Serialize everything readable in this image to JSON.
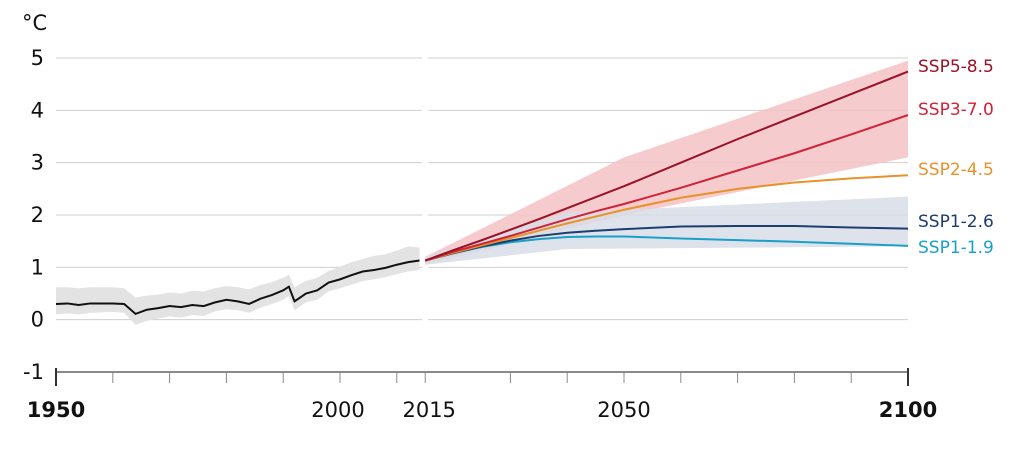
{
  "chart_data": {
    "type": "line",
    "title": "",
    "xlabel": "",
    "ylabel": "°C",
    "xlim": [
      1950,
      2100
    ],
    "ylim": [
      -1,
      5
    ],
    "grid": true,
    "legend": "right-end labels",
    "x_ticks": [
      {
        "value": 1950,
        "label": "1950",
        "bold": true
      },
      {
        "value": 2000,
        "label": "2000",
        "bold": false
      },
      {
        "value": 2015,
        "label": "2015",
        "bold": false
      },
      {
        "value": 2050,
        "label": "2050",
        "bold": false
      },
      {
        "value": 2100,
        "label": "2100",
        "bold": true
      }
    ],
    "y_ticks": [
      {
        "value": 5,
        "label": "5"
      },
      {
        "value": 4,
        "label": "4"
      },
      {
        "value": 3,
        "label": "3"
      },
      {
        "value": 2,
        "label": "2"
      },
      {
        "value": 1,
        "label": "1"
      },
      {
        "value": 0,
        "label": "0"
      },
      {
        "value": -1,
        "label": "-1"
      }
    ],
    "historical": {
      "color": "#111111",
      "band_color": "#e3e3e3",
      "x": [
        1950,
        1952,
        1954,
        1956,
        1958,
        1960,
        1962,
        1964,
        1966,
        1968,
        1970,
        1972,
        1974,
        1976,
        1978,
        1980,
        1982,
        1984,
        1986,
        1988,
        1990,
        1991,
        1992,
        1994,
        1996,
        1998,
        2000,
        2002,
        2004,
        2006,
        2008,
        2010,
        2012,
        2014
      ],
      "y": [
        0.3,
        0.31,
        0.28,
        0.31,
        0.31,
        0.31,
        0.3,
        0.11,
        0.19,
        0.22,
        0.26,
        0.24,
        0.28,
        0.26,
        0.33,
        0.38,
        0.35,
        0.3,
        0.4,
        0.47,
        0.56,
        0.63,
        0.35,
        0.5,
        0.56,
        0.71,
        0.77,
        0.85,
        0.92,
        0.95,
        0.99,
        1.05,
        1.1,
        1.13
      ],
      "low": [
        0.1,
        0.12,
        0.1,
        0.13,
        0.14,
        0.15,
        0.13,
        -0.1,
        -0.02,
        0.02,
        0.06,
        0.04,
        0.09,
        0.07,
        0.16,
        0.2,
        0.18,
        0.13,
        0.23,
        0.3,
        0.38,
        0.45,
        0.18,
        0.33,
        0.38,
        0.54,
        0.6,
        0.67,
        0.74,
        0.77,
        0.81,
        0.87,
        0.92,
        0.95
      ],
      "high": [
        0.62,
        0.62,
        0.6,
        0.62,
        0.62,
        0.62,
        0.6,
        0.42,
        0.46,
        0.48,
        0.52,
        0.5,
        0.55,
        0.54,
        0.6,
        0.64,
        0.62,
        0.58,
        0.66,
        0.72,
        0.8,
        0.86,
        0.62,
        0.74,
        0.8,
        0.93,
        1.01,
        1.1,
        1.16,
        1.22,
        1.25,
        1.32,
        1.4,
        1.38
      ]
    },
    "projection_bands": [
      {
        "name": "SSP5-8.5",
        "color": "#f3c2c6",
        "x": [
          2015,
          2050,
          2100
        ],
        "low": [
          1.05,
          2.0,
          3.1
        ],
        "high": [
          1.2,
          3.1,
          4.95
        ]
      },
      {
        "name": "SSP1-2.6",
        "color": "#d8dde6",
        "x": [
          2015,
          2040,
          2100
        ],
        "low": [
          1.05,
          1.35,
          1.4
        ],
        "high": [
          1.2,
          2.05,
          2.35
        ]
      }
    ],
    "series": [
      {
        "name": "SSP1-1.9",
        "color": "#1aa0c8",
        "x": [
          2015,
          2020,
          2025,
          2030,
          2035,
          2040,
          2045,
          2050,
          2060,
          2070,
          2080,
          2090,
          2100
        ],
        "values": [
          1.13,
          1.27,
          1.39,
          1.48,
          1.54,
          1.58,
          1.59,
          1.59,
          1.55,
          1.52,
          1.49,
          1.45,
          1.41
        ]
      },
      {
        "name": "SSP1-2.6",
        "color": "#1c3d6e",
        "x": [
          2015,
          2020,
          2025,
          2030,
          2035,
          2040,
          2045,
          2050,
          2060,
          2070,
          2080,
          2090,
          2100
        ],
        "values": [
          1.13,
          1.27,
          1.4,
          1.51,
          1.6,
          1.66,
          1.7,
          1.73,
          1.78,
          1.79,
          1.79,
          1.76,
          1.74
        ]
      },
      {
        "name": "SSP2-4.5",
        "color": "#e8922a",
        "x": [
          2015,
          2020,
          2025,
          2030,
          2035,
          2040,
          2045,
          2050,
          2060,
          2070,
          2080,
          2090,
          2100
        ],
        "values": [
          1.13,
          1.28,
          1.42,
          1.56,
          1.7,
          1.84,
          1.97,
          2.1,
          2.33,
          2.5,
          2.62,
          2.7,
          2.76
        ]
      },
      {
        "name": "SSP3-7.0",
        "color": "#cf2337",
        "x": [
          2015,
          2020,
          2025,
          2030,
          2035,
          2040,
          2045,
          2050,
          2060,
          2070,
          2080,
          2090,
          2100
        ],
        "values": [
          1.13,
          1.3,
          1.45,
          1.6,
          1.76,
          1.92,
          2.07,
          2.21,
          2.52,
          2.85,
          3.18,
          3.54,
          3.91
        ]
      },
      {
        "name": "SSP5-8.5",
        "color": "#9a1226",
        "x": [
          2015,
          2020,
          2025,
          2030,
          2035,
          2040,
          2045,
          2050,
          2060,
          2070,
          2080,
          2090,
          2100
        ],
        "values": [
          1.13,
          1.33,
          1.52,
          1.72,
          1.92,
          2.13,
          2.34,
          2.55,
          3.0,
          3.45,
          3.88,
          4.31,
          4.74
        ]
      }
    ]
  }
}
